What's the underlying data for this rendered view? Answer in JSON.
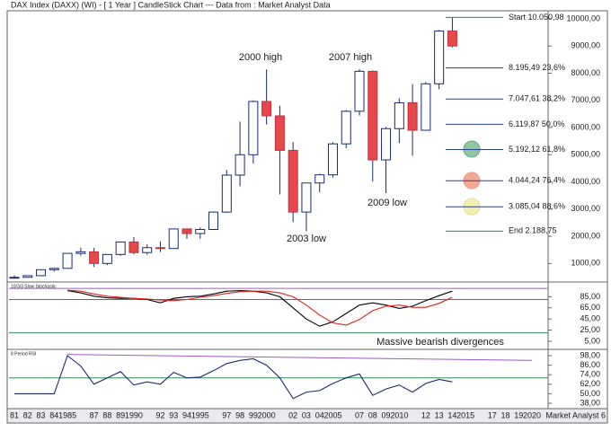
{
  "chart_data": [
    {
      "type": "candlestick",
      "title": "DAX Index (DAXX) (WI) -  [ 1 Year ] CandleStick Chart --- Data from : Market Analyst Data",
      "categories": [
        "81",
        "82",
        "83",
        "84",
        "1985",
        null,
        "87",
        "88",
        "89",
        "1990",
        null,
        "92",
        "93",
        "94",
        "1995",
        null,
        "97",
        "98",
        "99",
        "2000",
        null,
        "02",
        "03",
        "04",
        "2005",
        null,
        "07",
        "08",
        "09",
        "2010",
        null,
        "12",
        "13",
        "14",
        "2015",
        null,
        "17",
        "18",
        "19",
        "2020"
      ],
      "open": [
        470,
        490,
        550,
        770,
        820,
        1370,
        1430,
        1000,
        1330,
        1790,
        1400,
        1580,
        1550,
        2270,
        2100,
        2250,
        2890,
        4250,
        5000,
        6960,
        6430,
        5160,
        2890,
        3960,
        4260,
        5400,
        6600,
        8070,
        4810,
        5960,
        6910,
        5900,
        7610,
        9550,
        null,
        null,
        null,
        null,
        null,
        null
      ],
      "high": [
        560,
        560,
        780,
        820,
        1370,
        1580,
        1570,
        1330,
        1800,
        1970,
        1700,
        1810,
        2270,
        2270,
        2320,
        2910,
        4440,
        6220,
        7000,
        8140,
        6800,
        5470,
        3970,
        4300,
        5460,
        6640,
        8150,
        8100,
        6020,
        7080,
        7600,
        7670,
        9590,
        10050.98,
        null,
        null,
        null,
        null,
        null,
        null
      ],
      "low": [
        450,
        470,
        540,
        700,
        810,
        1290,
        870,
        940,
        1280,
        1330,
        1320,
        1420,
        1540,
        1910,
        1910,
        2250,
        2860,
        3840,
        4680,
        6110,
        3540,
        2520,
        2190,
        3620,
        4160,
        5240,
        6440,
        4010,
        3590,
        5430,
        4960,
        5900,
        7410,
        8950,
        null,
        null,
        null,
        null,
        null,
        null
      ],
      "close": [
        490,
        550,
        770,
        820,
        1370,
        1430,
        1000,
        1330,
        1790,
        1400,
        1580,
        1550,
        2270,
        2100,
        2250,
        2890,
        4250,
        5000,
        6960,
        6430,
        5160,
        2890,
        3960,
        4260,
        5400,
        6600,
        8070,
        4810,
        5960,
        6910,
        5900,
        7610,
        9550,
        9000,
        null,
        null,
        null,
        null,
        null,
        null
      ],
      "up_color": "#ffffff",
      "down_color": "#e8474c",
      "edge_color": "#1a2a6c",
      "ylim": [
        350,
        10230
      ],
      "yticks": [
        {
          "value": 1000,
          "label": "1000,00"
        },
        {
          "value": 2000,
          "label": "2000,00"
        },
        {
          "value": 3000,
          "label": "3000,00"
        },
        {
          "value": 4000,
          "label": "4000,00"
        },
        {
          "value": 5000,
          "label": "5000,00"
        },
        {
          "value": 6000,
          "label": "6000,00"
        },
        {
          "value": 7000,
          "label": "7000,00"
        },
        {
          "value": 8000,
          "label": "8000,00"
        },
        {
          "value": 9000,
          "label": "9000,00"
        },
        {
          "value": 10000,
          "label": "10000,00"
        }
      ],
      "fib_levels": [
        {
          "value": 10050.98,
          "label": "Start 10.050,98",
          "color": "#2e8b3a"
        },
        {
          "value": 8195.49,
          "label": "8.195,49 23,6%",
          "color": "#2a3f9e"
        },
        {
          "value": 7047.61,
          "label": "7.047,61 38,2%",
          "color": "#2a3f9e"
        },
        {
          "value": 6119.87,
          "label": "6.119,87 50,0%",
          "color": "#2a3f9e"
        },
        {
          "value": 5192.12,
          "label": "5.192,12 61,8%",
          "color": "#2a3f9e"
        },
        {
          "value": 4044.24,
          "label": "4.044,24 76,4%",
          "color": "#2a3f9e"
        },
        {
          "value": 3085.04,
          "label": "3.085,04 88,6%",
          "color": "#2a3f9e"
        },
        {
          "value": 2188.75,
          "label": "End 2.188,75",
          "color": "#2e8b3a"
        }
      ],
      "annotations": [
        "2000 high",
        "2007 high",
        "2003 low",
        "2009 low"
      ]
    },
    {
      "type": "line",
      "label": "10/3/3 Slow Stochastic",
      "series": [
        {
          "color": "#000000",
          "values": [
            null,
            null,
            null,
            null,
            96,
            92,
            86,
            83,
            82,
            82,
            80,
            74,
            82,
            85,
            86,
            90,
            95,
            96,
            95,
            92,
            85,
            65,
            45,
            32,
            40,
            55,
            70,
            74,
            70,
            64,
            68,
            78,
            87,
            95,
            null,
            null,
            null,
            null,
            null,
            null
          ]
        },
        {
          "color": "#e02020",
          "values": [
            null,
            null,
            null,
            null,
            97,
            95,
            90,
            86,
            84,
            82,
            81,
            79,
            78,
            80,
            84,
            87,
            91,
            94,
            95,
            95,
            92,
            85,
            70,
            52,
            38,
            34,
            44,
            60,
            68,
            70,
            66,
            66,
            73,
            84,
            null,
            null,
            null,
            null,
            null,
            null
          ]
        }
      ],
      "ylim": [
        -8,
        105
      ],
      "yticks": [
        {
          "value": 85,
          "label": "85,00"
        },
        {
          "value": 65,
          "label": "65,00"
        },
        {
          "value": 45,
          "label": "45,00"
        },
        {
          "value": 25,
          "label": "25,00"
        },
        {
          "value": 5,
          "label": "5,00"
        }
      ],
      "reference_lines": [
        {
          "value": 100,
          "color": "#a05ac8"
        },
        {
          "value": 80,
          "color": "#2e8b57"
        },
        {
          "value": 20,
          "color": "#2e8b57"
        }
      ]
    },
    {
      "type": "line",
      "label": "8 Period RSI",
      "annotation": "Massive bearish divergences",
      "series": [
        {
          "color": "#1a2a6c",
          "values": [
            50,
            50,
            50,
            50,
            98,
            85,
            62,
            70,
            78,
            61,
            65,
            62,
            77,
            70,
            71,
            79,
            88,
            92,
            94,
            86,
            70,
            44,
            52,
            54,
            63,
            70,
            75,
            48,
            56,
            61,
            52,
            63,
            68,
            65,
            null,
            null,
            null,
            null,
            null,
            null
          ]
        }
      ],
      "ylim": [
        34.6,
        104.8
      ],
      "yticks": [
        {
          "value": 98,
          "label": "98,00"
        },
        {
          "value": 86,
          "label": "86,00"
        },
        {
          "value": 74,
          "label": "74,00"
        },
        {
          "value": 62,
          "label": "62,00"
        },
        {
          "value": 50,
          "label": "50,00"
        },
        {
          "value": 38,
          "label": "38,00"
        }
      ],
      "reference_lines": [
        {
          "value": 70,
          "color": "#2e8b57"
        }
      ],
      "trendline": {
        "color": "#a05ac8",
        "values": [
          99.5,
          92
        ]
      }
    }
  ],
  "footer": "Market Analyst 6"
}
